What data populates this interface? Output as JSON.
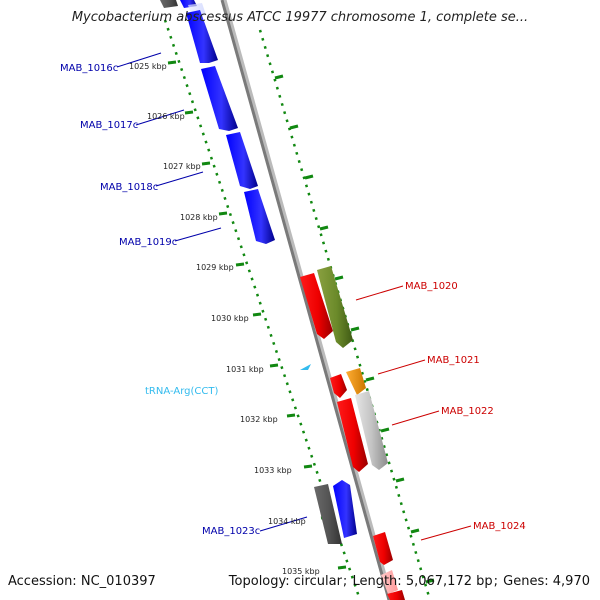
{
  "header": {
    "title": "Mycobacterium abscessus ATCC 19977 chromosome 1, complete se..."
  },
  "footer": {
    "accession_label": "Accession:",
    "accession": "NC_010397",
    "topology_label": "Topology:",
    "topology": "circular",
    "length_label": "Length:",
    "length": "5,067,172 bp",
    "genes_label": "Genes:",
    "genes": "4,970"
  },
  "colors": {
    "forward_gene": "#ff0000",
    "reverse_gene": "#0000ff",
    "rna_gene": "#33bbee",
    "backbone": "#888888",
    "ruler_dots": "#118811",
    "tick_label": "#222222",
    "forward_label": "#cc0000",
    "reverse_label": "#0000aa"
  },
  "ruler": {
    "ticks": [
      "1025 kbp",
      "1026 kbp",
      "1027 kbp",
      "1028 kbp",
      "1029 kbp",
      "1030 kbp",
      "1031 kbp",
      "1032 kbp",
      "1033 kbp",
      "1034 kbp",
      "1035 kbp"
    ]
  },
  "gene_labels": {
    "reverse": [
      "MAB_1016c",
      "MAB_1017c",
      "MAB_1018c",
      "MAB_1019c",
      "tRNA-Arg(CCT)",
      "MAB_1023c"
    ],
    "forward": [
      "MAB_1020",
      "MAB_1021",
      "MAB_1022",
      "MAB_1024"
    ]
  }
}
